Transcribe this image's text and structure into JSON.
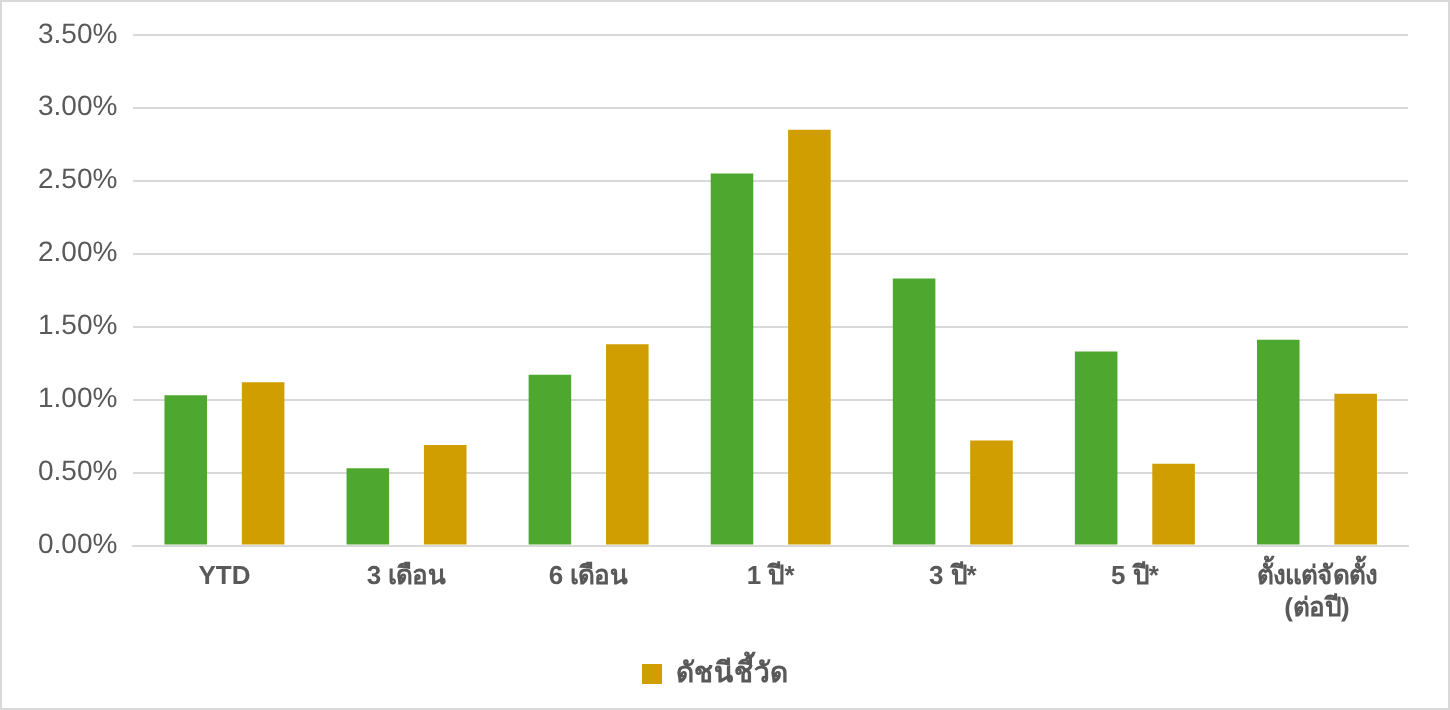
{
  "chart_data": {
    "type": "bar",
    "categories": [
      "YTD",
      "3 เดือน",
      "6 เดือน",
      "1 ปี*",
      "3 ปี*",
      "5 ปี*",
      "ตั้งแต่จัดตั้ง\n(ต่อปี)"
    ],
    "series": [
      {
        "color": "#4ea72e",
        "values": [
          1.03,
          0.53,
          1.17,
          2.55,
          1.83,
          1.33,
          1.41
        ]
      },
      {
        "name": "ดัชนีชี้วัด",
        "color": "#d09e00",
        "values": [
          1.12,
          0.69,
          1.38,
          2.85,
          0.72,
          0.56,
          1.04
        ]
      }
    ],
    "ylim": [
      0,
      3.5
    ],
    "yticks": [
      {
        "value": 0,
        "label": "0.00%"
      },
      {
        "value": 0.5,
        "label": "0.50%"
      },
      {
        "value": 1,
        "label": "1.00%"
      },
      {
        "value": 1.5,
        "label": "1.50%"
      },
      {
        "value": 2,
        "label": "2.00%"
      },
      {
        "value": 2.5,
        "label": "2.50%"
      },
      {
        "value": 3,
        "label": "3.00%"
      },
      {
        "value": 3.5,
        "label": "3.50%"
      }
    ],
    "grid": "y",
    "legend": "bottom"
  }
}
